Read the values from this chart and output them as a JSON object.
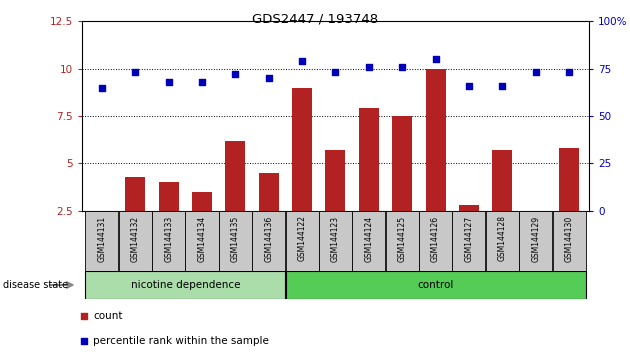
{
  "title": "GDS2447 / 193748",
  "samples": [
    "GSM144131",
    "GSM144132",
    "GSM144133",
    "GSM144134",
    "GSM144135",
    "GSM144136",
    "GSM144122",
    "GSM144123",
    "GSM144124",
    "GSM144125",
    "GSM144126",
    "GSM144127",
    "GSM144128",
    "GSM144129",
    "GSM144130"
  ],
  "count_values": [
    2.5,
    4.3,
    4.0,
    3.5,
    6.2,
    4.5,
    9.0,
    5.7,
    7.9,
    7.5,
    10.0,
    2.8,
    5.7,
    2.5,
    5.8
  ],
  "percentile_values": [
    9.0,
    9.8,
    9.3,
    9.3,
    9.7,
    9.5,
    10.4,
    9.8,
    10.1,
    10.1,
    10.5,
    9.1,
    9.1,
    9.8,
    9.8
  ],
  "ylim": [
    2.5,
    12.5
  ],
  "yticks_left": [
    2.5,
    5.0,
    7.5,
    10.0,
    12.5
  ],
  "ytick_left_labels": [
    "2.5",
    "5",
    "7.5",
    "10",
    "12.5"
  ],
  "yticks_right_labels": [
    "0",
    "25",
    "50",
    "75",
    "100%"
  ],
  "group1_label": "nicotine dependence",
  "group2_label": "control",
  "group1_count": 6,
  "group2_count": 9,
  "disease_state_label": "disease state",
  "legend_count_label": "count",
  "legend_percentile_label": "percentile rank within the sample",
  "bar_color": "#b22222",
  "dot_color": "#0000bb",
  "group1_color": "#aaddaa",
  "group2_color": "#55cc55",
  "bg_color": "#ffffff",
  "tick_area_color": "#c8c8c8",
  "bar_width": 0.6,
  "dot_size": 18
}
